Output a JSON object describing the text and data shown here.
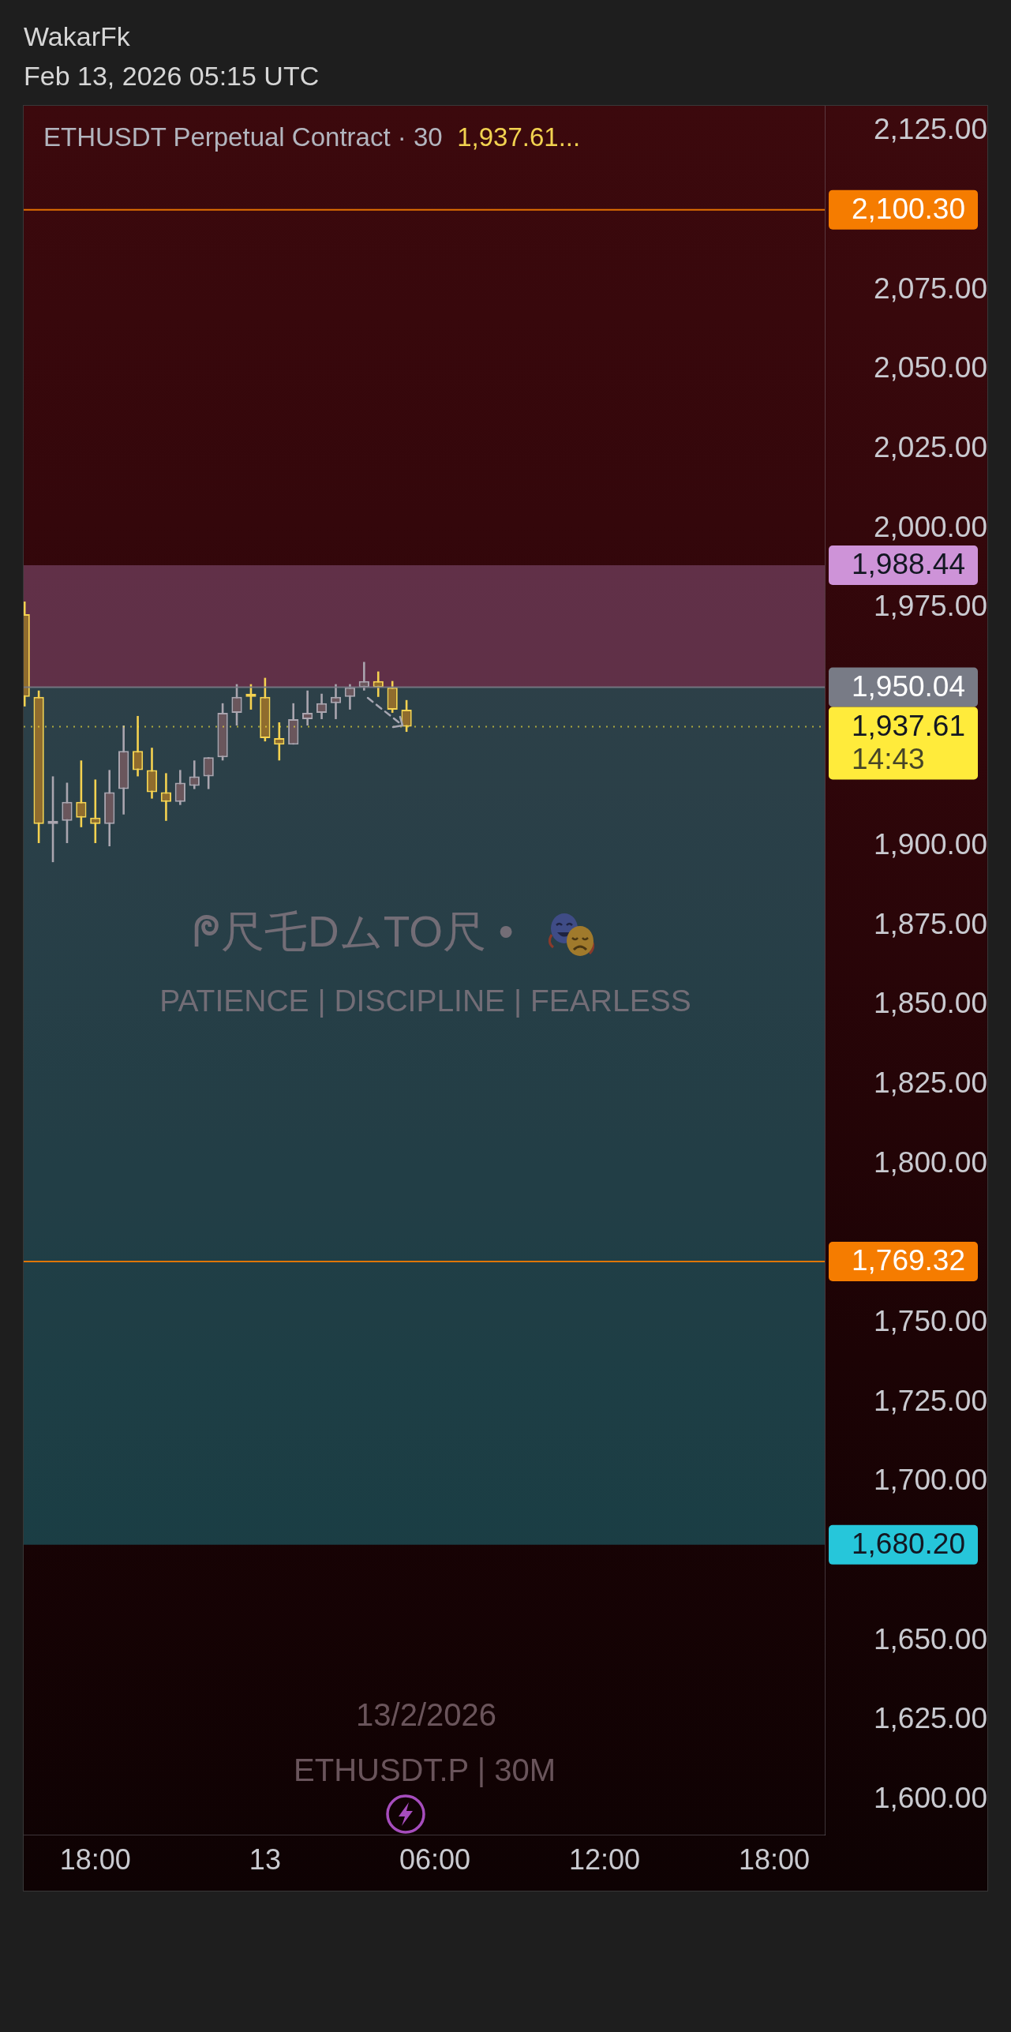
{
  "chart_data": {
    "type": "candlestick",
    "title": "ETHUSDT Perpetual Contract · 30",
    "x": [
      "2026-02-12T15:30",
      "2026-02-12T16:00",
      "2026-02-12T16:30",
      "2026-02-12T17:00",
      "2026-02-12T17:30",
      "2026-02-12T18:00",
      "2026-02-12T18:30",
      "2026-02-12T19:00",
      "2026-02-12T19:30",
      "2026-02-12T20:00",
      "2026-02-12T20:30",
      "2026-02-12T21:00",
      "2026-02-12T21:30",
      "2026-02-12T22:00",
      "2026-02-12T22:30",
      "2026-02-12T23:00",
      "2026-02-12T23:30",
      "2026-02-13T00:00",
      "2026-02-13T00:30",
      "2026-02-13T01:00",
      "2026-02-13T01:30",
      "2026-02-13T02:00",
      "2026-02-13T02:30",
      "2026-02-13T03:00",
      "2026-02-13T03:30",
      "2026-02-13T04:00",
      "2026-02-13T04:30",
      "2026-02-13T05:00"
    ],
    "ohlc": [
      [
        1973,
        1977,
        1944,
        1947
      ],
      [
        1947,
        1949,
        1901,
        1907
      ],
      [
        1907,
        1922,
        1895,
        1908
      ],
      [
        1908,
        1920,
        1901,
        1914
      ],
      [
        1914,
        1927,
        1906,
        1909
      ],
      [
        1909,
        1921,
        1901,
        1907
      ],
      [
        1907,
        1924,
        1900,
        1917
      ],
      [
        1918,
        1938,
        1910,
        1930
      ],
      [
        1930,
        1941,
        1922,
        1924
      ],
      [
        1924,
        1931,
        1915,
        1917
      ],
      [
        1917,
        1923,
        1908,
        1914
      ],
      [
        1914,
        1924,
        1913,
        1920
      ],
      [
        1919,
        1927,
        1918,
        1922
      ],
      [
        1922,
        1928,
        1918,
        1928
      ],
      [
        1928,
        1945,
        1927,
        1942
      ],
      [
        1942,
        1951,
        1938,
        1947
      ],
      [
        1948,
        1951,
        1943,
        1947
      ],
      [
        1947,
        1953,
        1933,
        1934
      ],
      [
        1934,
        1939,
        1927,
        1932
      ],
      [
        1932,
        1945,
        1932,
        1940
      ],
      [
        1940,
        1949,
        1938,
        1942
      ],
      [
        1942,
        1948,
        1940,
        1945
      ],
      [
        1945,
        1951,
        1940,
        1947
      ],
      [
        1947,
        1951,
        1943,
        1950
      ],
      [
        1950,
        1958,
        1949,
        1952
      ],
      [
        1952,
        1955,
        1947,
        1950
      ],
      [
        1950,
        1952,
        1942,
        1943
      ],
      [
        1943,
        1946,
        1936,
        1937.61
      ]
    ],
    "colors": [
      "#f5d250",
      "#f5d250",
      "#aaa5af",
      "#aaa5af",
      "#f5d250",
      "#f5d250",
      "#aaa5af",
      "#aaa5af",
      "#f5d250",
      "#f5d250",
      "#f5d250",
      "#aaa5af",
      "#aaa5af",
      "#aaa5af",
      "#aaa5af",
      "#aaa5af",
      "#f5d250",
      "#f5d250",
      "#f5d250",
      "#aaa5af",
      "#aaa5af",
      "#aaa5af",
      "#aaa5af",
      "#aaa5af",
      "#aaa5af",
      "#f5d250",
      "#f5d250",
      "#f5d250"
    ],
    "xlim": [
      "2026-02-12T15:28",
      "2026-02-13T19:47"
    ],
    "xticks": [
      {
        "value": "2026-02-12T18:00",
        "label": "18:00"
      },
      {
        "value": "2026-02-13T00:00",
        "label": "13"
      },
      {
        "value": "2026-02-13T06:00",
        "label": "06:00"
      },
      {
        "value": "2026-02-13T12:00",
        "label": "12:00"
      },
      {
        "value": "2026-02-13T18:00",
        "label": "18:00"
      }
    ],
    "ylim": [
      1589,
      2133
    ],
    "yticks": [
      {
        "value": 1600,
        "label": "1,600.00"
      },
      {
        "value": 1625,
        "label": "1,625.00"
      },
      {
        "value": 1650,
        "label": "1,650.00"
      },
      {
        "value": 1700,
        "label": "1,700.00"
      },
      {
        "value": 1725,
        "label": "1,725.00"
      },
      {
        "value": 1750,
        "label": "1,750.00"
      },
      {
        "value": 1800,
        "label": "1,800.00"
      },
      {
        "value": 1825,
        "label": "1,825.00"
      },
      {
        "value": 1850,
        "label": "1,850.00"
      },
      {
        "value": 1875,
        "label": "1,875.00"
      },
      {
        "value": 1900,
        "label": "1,900.00"
      },
      {
        "value": 1975,
        "label": "1,975.00"
      },
      {
        "value": 2000,
        "label": "2,000.00"
      },
      {
        "value": 2025,
        "label": "2,025.00"
      },
      {
        "value": 2050,
        "label": "2,050.00"
      },
      {
        "value": 2075,
        "label": "2,075.00"
      },
      {
        "value": 2125,
        "label": "2,125.00"
      }
    ],
    "ref_lines": [
      {
        "axis": "y",
        "value": 2100.3,
        "label": "2,100.30",
        "color": "#f57c00"
      },
      {
        "axis": "y",
        "value": 1769.32,
        "label": "1,769.32",
        "color": "#f57c00"
      },
      {
        "axis": "y",
        "value": 1950.04,
        "label": "1,950.04",
        "color": "#787b86"
      },
      {
        "axis": "y",
        "value": 1937.61,
        "label": "1,937.61",
        "color": "#ffeb3b",
        "line_style": "dotted"
      }
    ],
    "bands": [
      {
        "axis": "y",
        "from": 1950.04,
        "to": 1988.44,
        "label": "1,988.44",
        "color": "#ce93d8"
      },
      {
        "axis": "y",
        "from": 1950.04,
        "to": 1680.2,
        "label": "1,680.20",
        "color": "#26c6da"
      }
    ],
    "annotations": [
      "WakarFk",
      "Feb 13, 2026 05:15 UTC",
      "1,937.61...",
      "ᖘ尺乇DムTO尺 •",
      "PATIENCE | DISCIPLINE | FEARLESS",
      "13/2/2026",
      "ETHUSDT.P | 30M",
      "14:43"
    ]
  }
}
